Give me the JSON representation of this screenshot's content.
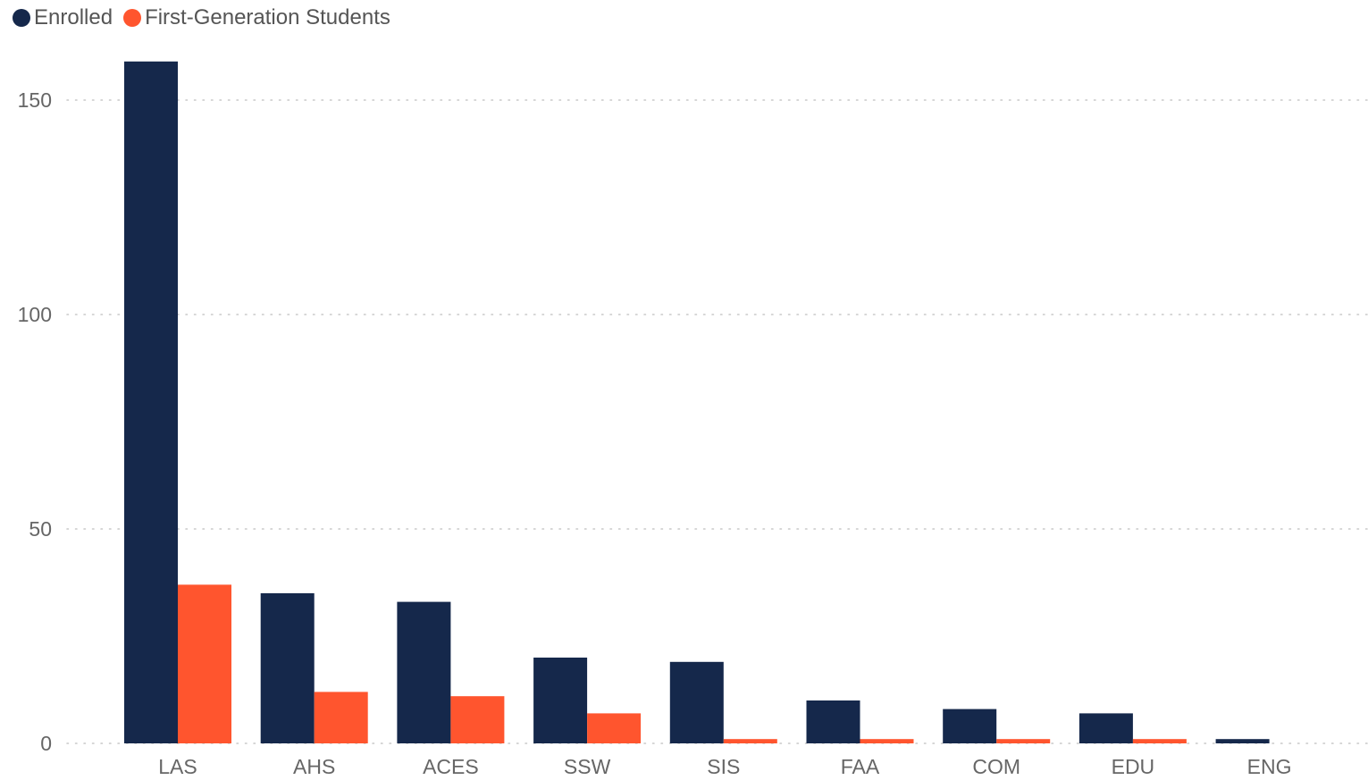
{
  "chart_data": {
    "type": "bar",
    "categories": [
      "LAS",
      "AHS",
      "ACES",
      "SSW",
      "SIS",
      "FAA",
      "COM",
      "EDU",
      "ENG"
    ],
    "series": [
      {
        "name": "Enrolled",
        "color": "#15284B",
        "values": [
          159,
          35,
          33,
          20,
          19,
          10,
          8,
          7,
          1
        ]
      },
      {
        "name": "First-Generation Students",
        "color": "#FF552E",
        "values": [
          37,
          12,
          11,
          7,
          1,
          1,
          1,
          1,
          0
        ]
      }
    ],
    "yticks": [
      0,
      50,
      100,
      150
    ],
    "ylim": [
      0,
      160
    ],
    "title": "",
    "xlabel": "",
    "ylabel": "",
    "grid": true,
    "legend_position": "top-left"
  }
}
